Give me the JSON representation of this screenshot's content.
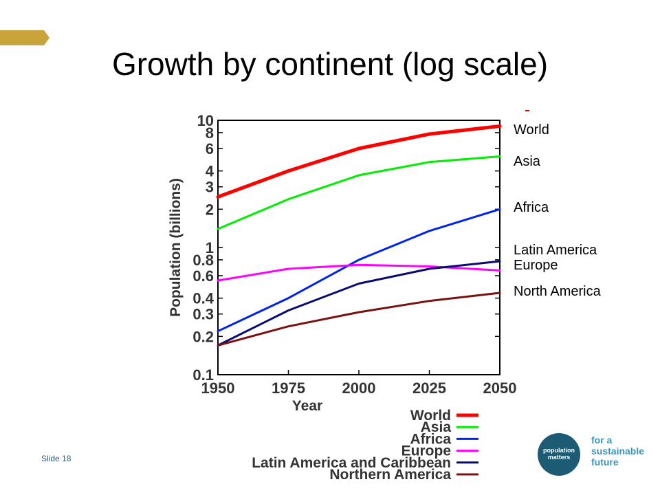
{
  "title": "Growth by continent (log scale)",
  "slide_number": "Slide 18",
  "logo": {
    "line1": "population",
    "line2": "matters"
  },
  "tagline": [
    "for a",
    "sustainable",
    "future"
  ],
  "side_labels": [
    {
      "text": "World",
      "key": "world"
    },
    {
      "text": "Asia",
      "key": "asia"
    },
    {
      "text": "Africa",
      "key": "africa"
    },
    {
      "text": "Latin America",
      "key": "latin-america"
    },
    {
      "text": "Europe",
      "key": "europe"
    },
    {
      "text": "North America",
      "key": "north-america"
    }
  ],
  "colors": {
    "accent_gold": "#c9a43a",
    "logo_blue": "#1d5a73",
    "tagline_blue": "#3f93b8"
  },
  "chart_data": {
    "type": "line",
    "ylabel": "Population (billions)",
    "xlabel": "Year",
    "yscale": "log",
    "ylim": [
      0.1,
      10
    ],
    "xlim": [
      1950,
      2050
    ],
    "xticks": [
      1950,
      1975,
      2000,
      2025,
      2050
    ],
    "yticks": [
      0.1,
      0.2,
      0.3,
      0.4,
      0.6,
      0.8,
      1,
      2,
      3,
      4,
      6,
      8,
      10
    ],
    "ytick_labels": [
      "0.1",
      "0.2",
      "0.3",
      "0.4",
      "0.6",
      "0.8",
      "1",
      "2",
      "3",
      "4",
      "6",
      "8",
      "10"
    ],
    "legend_position": "bottom",
    "x": [
      1950,
      1975,
      2000,
      2025,
      2050
    ],
    "series": [
      {
        "name": "World",
        "color": "#ff0000",
        "width": 5,
        "values": [
          2.5,
          4.0,
          6.0,
          7.8,
          9.0
        ]
      },
      {
        "name": "Asia",
        "color": "#00ee00",
        "width": 3,
        "values": [
          1.4,
          2.4,
          3.7,
          4.7,
          5.2
        ]
      },
      {
        "name": "Africa",
        "color": "#0022ee",
        "width": 3,
        "values": [
          0.22,
          0.4,
          0.8,
          1.35,
          2.0
        ]
      },
      {
        "name": "Europe",
        "color": "#ff00ff",
        "width": 3,
        "values": [
          0.55,
          0.68,
          0.73,
          0.71,
          0.66
        ]
      },
      {
        "name": "Latin America and Caribbean",
        "color": "#0a0a70",
        "width": 3,
        "values": [
          0.17,
          0.32,
          0.52,
          0.68,
          0.78
        ]
      },
      {
        "name": "Northern America",
        "color": "#7a1010",
        "width": 3,
        "values": [
          0.17,
          0.24,
          0.31,
          0.38,
          0.44
        ]
      }
    ]
  }
}
